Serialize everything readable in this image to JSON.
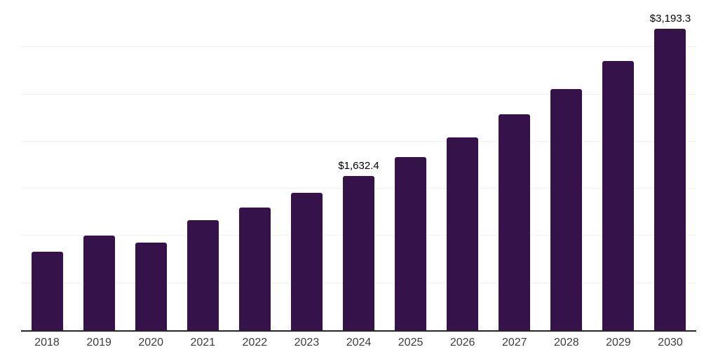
{
  "chart_data": {
    "type": "bar",
    "title": "",
    "xlabel": "",
    "ylabel": "",
    "categories": [
      "2018",
      "2019",
      "2020",
      "2021",
      "2022",
      "2023",
      "2024",
      "2025",
      "2026",
      "2027",
      "2028",
      "2029",
      "2030"
    ],
    "values": [
      835,
      1005,
      930,
      1165,
      1300,
      1460,
      1632.4,
      1835,
      2040,
      2290,
      2560,
      2850,
      3193.3
    ],
    "value_labels": [
      "",
      "",
      "",
      "",
      "",
      "",
      "$1,632.4",
      "",
      "",
      "",
      "",
      "",
      "$3,193.3"
    ],
    "ylim": [
      0,
      3500
    ],
    "gridline_interval": 500,
    "grid": "horizontal",
    "legend": "none",
    "colors": {
      "bar": "#351249",
      "axis": "#262626",
      "gridline": "#f2f2f2",
      "tick_label": "#3d3d3d",
      "value_label": "#000000"
    }
  }
}
